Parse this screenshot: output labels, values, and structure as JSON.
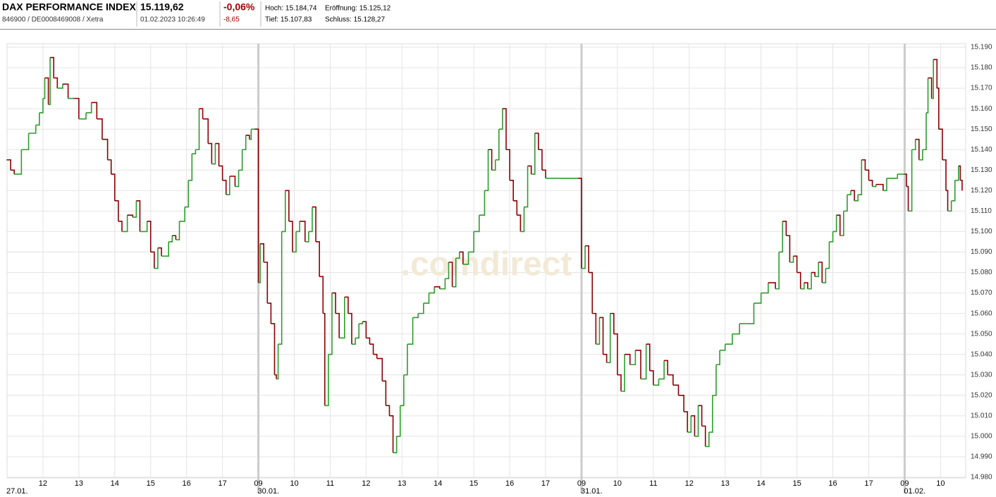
{
  "header": {
    "title": "DAX PERFORMANCE INDEX",
    "identifier": "846900 / DE0008469008 / Xetra",
    "price": "15.119,62",
    "timestamp": "01.02.2023 10:26:49",
    "change_pct": "-0,06%",
    "change_abs": "-8,65",
    "high": "Hoch: 15.184,74",
    "open": "Eröffnung: 15.125,12",
    "low": "Tief: 15.107,83",
    "close": "Schluss: 15.128,27"
  },
  "chart_data": {
    "type": "line",
    "watermark": ".comdirect",
    "up_color": "#2e9b2e",
    "down_color": "#8b0000",
    "grid": true,
    "xlim": [
      0,
      26.7
    ],
    "ylim": [
      14.98,
      15.19
    ],
    "xticks": [
      {
        "value": 1,
        "label": "12"
      },
      {
        "value": 2,
        "label": "13"
      },
      {
        "value": 3,
        "label": "14"
      },
      {
        "value": 4,
        "label": "15"
      },
      {
        "value": 5,
        "label": "16"
      },
      {
        "value": 6,
        "label": "17"
      },
      {
        "value": 7,
        "label": "09"
      },
      {
        "value": 8,
        "label": "10"
      },
      {
        "value": 9,
        "label": "11"
      },
      {
        "value": 10,
        "label": "12"
      },
      {
        "value": 11,
        "label": "13"
      },
      {
        "value": 12,
        "label": "14"
      },
      {
        "value": 13,
        "label": "15"
      },
      {
        "value": 14,
        "label": "16"
      },
      {
        "value": 15,
        "label": "17"
      },
      {
        "value": 16,
        "label": "09"
      },
      {
        "value": 17,
        "label": "10"
      },
      {
        "value": 18,
        "label": "11"
      },
      {
        "value": 19,
        "label": "12"
      },
      {
        "value": 20,
        "label": "13"
      },
      {
        "value": 21,
        "label": "14"
      },
      {
        "value": 22,
        "label": "15"
      },
      {
        "value": 23,
        "label": "16"
      },
      {
        "value": 24,
        "label": "17"
      },
      {
        "value": 25,
        "label": "09"
      },
      {
        "value": 26,
        "label": "10"
      }
    ],
    "day_markers": [
      {
        "value": 0,
        "label": "27.01."
      },
      {
        "value": 7,
        "label": "30.01."
      },
      {
        "value": 16,
        "label": "31.01."
      },
      {
        "value": 25,
        "label": "01.02."
      }
    ],
    "yticks": [
      {
        "value": 14.98,
        "label": "14.980"
      },
      {
        "value": 14.99,
        "label": "14.990"
      },
      {
        "value": 15.0,
        "label": "15.000"
      },
      {
        "value": 15.01,
        "label": "15.010"
      },
      {
        "value": 15.02,
        "label": "15.020"
      },
      {
        "value": 15.03,
        "label": "15.030"
      },
      {
        "value": 15.04,
        "label": "15.040"
      },
      {
        "value": 15.05,
        "label": "15.050"
      },
      {
        "value": 15.06,
        "label": "15.060"
      },
      {
        "value": 15.07,
        "label": "15.070"
      },
      {
        "value": 15.08,
        "label": "15.080"
      },
      {
        "value": 15.09,
        "label": "15.090"
      },
      {
        "value": 15.1,
        "label": "15.100"
      },
      {
        "value": 15.11,
        "label": "15.110"
      },
      {
        "value": 15.12,
        "label": "15.120"
      },
      {
        "value": 15.13,
        "label": "15.130"
      },
      {
        "value": 15.14,
        "label": "15.140"
      },
      {
        "value": 15.15,
        "label": "15.150"
      },
      {
        "value": 15.16,
        "label": "15.160"
      },
      {
        "value": 15.17,
        "label": "15.170"
      },
      {
        "value": 15.18,
        "label": "15.180"
      },
      {
        "value": 15.19,
        "label": "15.190"
      }
    ],
    "x": [
      0,
      0.1,
      0.2,
      0.4,
      0.6,
      0.8,
      0.9,
      1.0,
      1.05,
      1.15,
      1.2,
      1.3,
      1.4,
      1.55,
      1.7,
      1.85,
      2.0,
      2.2,
      2.35,
      2.5,
      2.65,
      2.8,
      2.9,
      3.0,
      3.1,
      3.2,
      3.35,
      3.5,
      3.6,
      3.7,
      3.9,
      4.0,
      4.1,
      4.2,
      4.3,
      4.5,
      4.6,
      4.7,
      4.8,
      4.95,
      5.05,
      5.15,
      5.25,
      5.35,
      5.45,
      5.6,
      5.7,
      5.8,
      5.9,
      6.0,
      6.1,
      6.2,
      6.35,
      6.45,
      6.55,
      6.65,
      6.75,
      6.8,
      6.9,
      7.0,
      7.05,
      7.15,
      7.25,
      7.35,
      7.45,
      7.5,
      7.55,
      7.65,
      7.75,
      7.85,
      7.95,
      8.05,
      8.15,
      8.3,
      8.4,
      8.5,
      8.6,
      8.7,
      8.8,
      8.85,
      8.95,
      9.05,
      9.15,
      9.25,
      9.4,
      9.5,
      9.6,
      9.7,
      9.8,
      9.9,
      10.0,
      10.1,
      10.2,
      10.3,
      10.45,
      10.55,
      10.65,
      10.75,
      10.85,
      10.95,
      11.05,
      11.15,
      11.3,
      11.45,
      11.6,
      11.75,
      11.9,
      12.05,
      12.2,
      12.3,
      12.4,
      12.5,
      12.6,
      12.7,
      12.85,
      13.0,
      13.15,
      13.3,
      13.4,
      13.5,
      13.6,
      13.7,
      13.8,
      13.9,
      14.0,
      14.1,
      14.2,
      14.3,
      14.4,
      14.5,
      14.6,
      14.7,
      14.8,
      14.9,
      15.0,
      15.1,
      15.3,
      15.9,
      16.0,
      16.1,
      16.2,
      16.3,
      16.4,
      16.5,
      16.6,
      16.7,
      16.8,
      16.9,
      17.0,
      17.1,
      17.2,
      17.35,
      17.5,
      17.65,
      17.8,
      17.9,
      18.0,
      18.15,
      18.3,
      18.4,
      18.55,
      18.7,
      18.85,
      18.95,
      19.05,
      19.15,
      19.25,
      19.35,
      19.45,
      19.55,
      19.65,
      19.75,
      19.85,
      20.0,
      20.2,
      20.4,
      20.6,
      20.8,
      21.0,
      21.2,
      21.4,
      21.5,
      21.6,
      21.7,
      21.8,
      21.9,
      22.0,
      22.1,
      22.2,
      22.3,
      22.4,
      22.5,
      22.6,
      22.7,
      22.8,
      22.9,
      23.0,
      23.1,
      23.2,
      23.3,
      23.4,
      23.5,
      23.6,
      23.7,
      23.8,
      23.9,
      24.0,
      24.1,
      24.2,
      24.4,
      24.5,
      24.8,
      25.0,
      25.05,
      25.1,
      25.2,
      25.3,
      25.4,
      25.5,
      25.6,
      25.65,
      25.75,
      25.8,
      25.9,
      25.95,
      26.05,
      26.15,
      26.2,
      26.3,
      26.4,
      26.5,
      26.55,
      26.6
    ],
    "values": [
      15.135,
      15.13,
      15.128,
      15.14,
      15.148,
      15.152,
      15.158,
      15.165,
      15.175,
      15.162,
      15.185,
      15.175,
      15.17,
      15.172,
      15.165,
      15.165,
      15.155,
      15.158,
      15.163,
      15.155,
      15.145,
      15.135,
      15.128,
      15.115,
      15.105,
      15.1,
      15.108,
      15.107,
      15.115,
      15.1,
      15.105,
      15.09,
      15.082,
      15.092,
      15.088,
      15.095,
      15.098,
      15.096,
      15.105,
      15.112,
      15.125,
      15.138,
      15.14,
      15.16,
      15.155,
      15.143,
      15.133,
      15.143,
      15.132,
      15.125,
      15.118,
      15.127,
      15.122,
      15.13,
      15.14,
      15.147,
      15.145,
      15.15,
      15.15,
      15.075,
      15.094,
      15.085,
      15.065,
      15.055,
      15.03,
      15.028,
      15.045,
      15.1,
      15.12,
      15.105,
      15.09,
      15.1,
      15.105,
      15.095,
      15.1,
      15.112,
      15.095,
      15.078,
      15.06,
      15.015,
      15.04,
      15.07,
      15.06,
      15.048,
      15.068,
      15.06,
      15.045,
      15.048,
      15.055,
      15.056,
      15.048,
      15.045,
      15.04,
      15.038,
      15.027,
      15.015,
      15.01,
      14.992,
      15.0,
      15.015,
      15.03,
      15.045,
      15.058,
      15.06,
      15.065,
      15.07,
      15.073,
      15.072,
      15.077,
      15.085,
      15.073,
      15.087,
      15.09,
      15.084,
      15.09,
      15.1,
      15.108,
      15.12,
      15.14,
      15.13,
      15.135,
      15.15,
      15.16,
      15.14,
      15.125,
      15.115,
      15.108,
      15.1,
      15.112,
      15.132,
      15.128,
      15.148,
      15.14,
      15.13,
      15.126,
      15.126,
      15.126,
      15.126,
      15.082,
      15.093,
      15.08,
      15.06,
      15.045,
      15.058,
      15.04,
      15.036,
      15.06,
      15.05,
      15.03,
      15.022,
      15.04,
      15.035,
      15.042,
      15.028,
      15.045,
      15.032,
      15.025,
      15.028,
      15.037,
      15.03,
      15.025,
      15.02,
      15.012,
      15.002,
      15.01,
      15.0,
      15.015,
      15.005,
      14.995,
      15.002,
      15.02,
      15.035,
      15.042,
      15.045,
      15.05,
      15.055,
      15.055,
      15.065,
      15.07,
      15.075,
      15.072,
      15.09,
      15.105,
      15.098,
      15.085,
      15.088,
      15.08,
      15.072,
      15.075,
      15.072,
      15.08,
      15.078,
      15.085,
      15.075,
      15.082,
      15.095,
      15.1,
      15.108,
      15.098,
      15.11,
      15.118,
      15.12,
      15.115,
      15.118,
      15.135,
      15.13,
      15.125,
      15.122,
      15.123,
      15.12,
      15.126,
      15.128,
      15.128,
      15.122,
      15.11,
      15.14,
      15.145,
      15.135,
      15.14,
      15.158,
      15.175,
      15.165,
      15.184,
      15.17,
      15.15,
      15.135,
      15.12,
      15.11,
      15.115,
      15.125,
      15.132,
      15.125,
      15.12
    ]
  }
}
